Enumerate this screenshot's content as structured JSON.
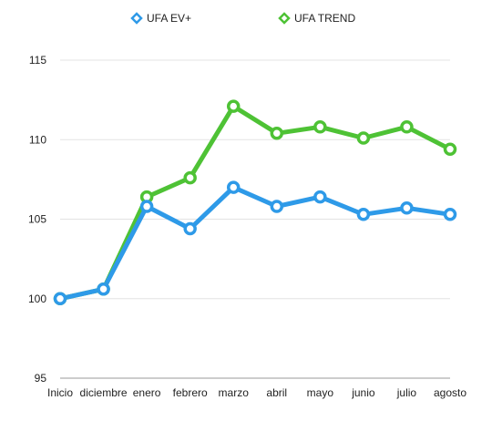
{
  "chart_data": {
    "type": "line",
    "categories": [
      "Inicio",
      "diciembre",
      "enero",
      "febrero",
      "marzo",
      "abril",
      "mayo",
      "junio",
      "julio",
      "agosto"
    ],
    "series": [
      {
        "name": "UFA EV+",
        "color": "#2e9ae8",
        "values": [
          100.0,
          100.6,
          105.8,
          104.4,
          107.0,
          105.8,
          106.4,
          105.3,
          105.7,
          105.3
        ]
      },
      {
        "name": "UFA TREND",
        "color": "#4ec235",
        "values": [
          100.0,
          100.6,
          106.4,
          107.6,
          112.1,
          110.4,
          110.8,
          110.1,
          110.8,
          109.4
        ]
      }
    ],
    "ylim": [
      95,
      115
    ],
    "yticks": [
      95,
      100,
      105,
      110,
      115
    ],
    "grid": true,
    "legend": "top-center"
  }
}
